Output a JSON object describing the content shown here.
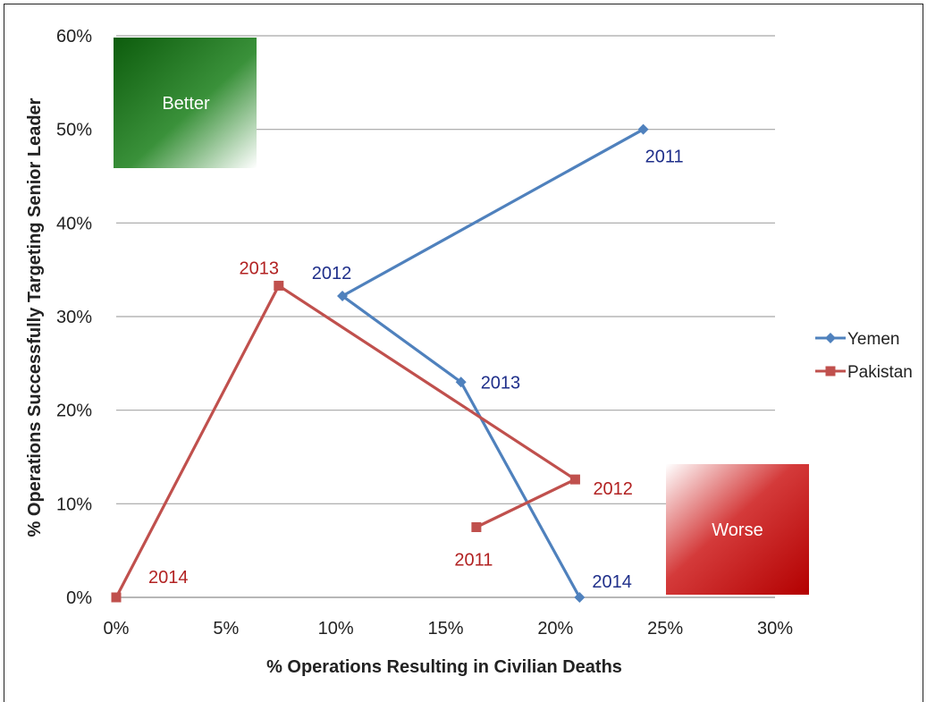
{
  "chart_data": {
    "type": "line",
    "title": "",
    "xlabel": "% Operations Resulting in Civilian Deaths",
    "ylabel": "% Operations Successfully Targeting Senior Leader",
    "xlim": [
      0,
      30
    ],
    "ylim": [
      0,
      60
    ],
    "x_ticks": [
      "0%",
      "5%",
      "10%",
      "15%",
      "20%",
      "25%",
      "30%"
    ],
    "y_ticks": [
      "0%",
      "10%",
      "20%",
      "30%",
      "40%",
      "50%",
      "60%"
    ],
    "grid": true,
    "legend_position": "right",
    "series": [
      {
        "name": "Yemen",
        "color": "#4f81bd",
        "label_color": "#1f2f8a",
        "marker": "diamond",
        "points": [
          {
            "label": "2011",
            "x": 24.0,
            "y": 50.0
          },
          {
            "label": "2012",
            "x": 10.3,
            "y": 32.2
          },
          {
            "label": "2013",
            "x": 15.7,
            "y": 23.0
          },
          {
            "label": "2014",
            "x": 21.1,
            "y": 0.0
          }
        ]
      },
      {
        "name": "Pakistan",
        "color": "#c0504d",
        "label_color": "#b22222",
        "marker": "square",
        "points": [
          {
            "label": "2011",
            "x": 16.4,
            "y": 7.5
          },
          {
            "label": "2012",
            "x": 20.9,
            "y": 12.6
          },
          {
            "label": "2013",
            "x": 7.4,
            "y": 33.3
          },
          {
            "label": "2014",
            "x": 0.0,
            "y": 0.0
          }
        ]
      }
    ],
    "annotations": [
      {
        "text": "Better",
        "color": "#1e7a1e"
      },
      {
        "text": "Worse",
        "color": "#c21a1a"
      }
    ]
  }
}
